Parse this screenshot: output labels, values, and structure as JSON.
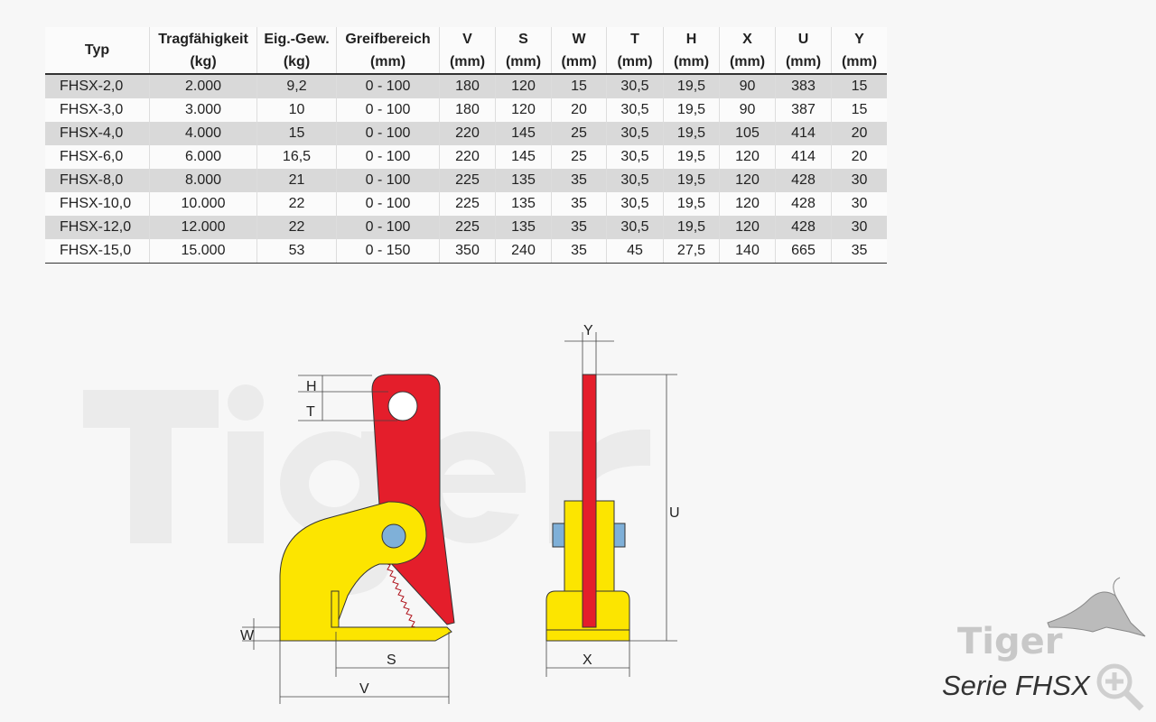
{
  "watermark": "Tiger",
  "table": {
    "headers": [
      {
        "l1": "Typ",
        "l2": ""
      },
      {
        "l1": "Tragfähigkeit",
        "l2": "(kg)"
      },
      {
        "l1": "Eig.-Gew.",
        "l2": "(kg)"
      },
      {
        "l1": "Greifbereich",
        "l2": "(mm)"
      },
      {
        "l1": "V",
        "l2": "(mm)"
      },
      {
        "l1": "S",
        "l2": "(mm)"
      },
      {
        "l1": "W",
        "l2": "(mm)"
      },
      {
        "l1": "T",
        "l2": "(mm)"
      },
      {
        "l1": "H",
        "l2": "(mm)"
      },
      {
        "l1": "X",
        "l2": "(mm)"
      },
      {
        "l1": "U",
        "l2": "(mm)"
      },
      {
        "l1": "Y",
        "l2": "(mm)"
      }
    ],
    "rows": [
      [
        "FHSX-2,0",
        "2.000",
        "9,2",
        "0 - 100",
        "180",
        "120",
        "15",
        "30,5",
        "19,5",
        "90",
        "383",
        "15"
      ],
      [
        "FHSX-3,0",
        "3.000",
        "10",
        "0 - 100",
        "180",
        "120",
        "20",
        "30,5",
        "19,5",
        "90",
        "387",
        "15"
      ],
      [
        "FHSX-4,0",
        "4.000",
        "15",
        "0 - 100",
        "220",
        "145",
        "25",
        "30,5",
        "19,5",
        "105",
        "414",
        "20"
      ],
      [
        "FHSX-6,0",
        "6.000",
        "16,5",
        "0 - 100",
        "220",
        "145",
        "25",
        "30,5",
        "19,5",
        "120",
        "414",
        "20"
      ],
      [
        "FHSX-8,0",
        "8.000",
        "21",
        "0 - 100",
        "225",
        "135",
        "35",
        "30,5",
        "19,5",
        "120",
        "428",
        "30"
      ],
      [
        "FHSX-10,0",
        "10.000",
        "22",
        "0 - 100",
        "225",
        "135",
        "35",
        "30,5",
        "19,5",
        "120",
        "428",
        "30"
      ],
      [
        "FHSX-12,0",
        "12.000",
        "22",
        "0 - 100",
        "225",
        "135",
        "35",
        "30,5",
        "19,5",
        "120",
        "428",
        "30"
      ],
      [
        "FHSX-15,0",
        "15.000",
        "53",
        "0 - 150",
        "350",
        "240",
        "35",
        "45",
        "27,5",
        "140",
        "665",
        "35"
      ]
    ]
  },
  "diagram": {
    "H": "H",
    "T": "T",
    "W": "W",
    "S": "S",
    "V": "V",
    "Y": "Y",
    "U": "U",
    "X": "X",
    "colors": {
      "red": "#e41e2b",
      "yellow": "#fce500",
      "blue": "#7fb0d8"
    }
  },
  "logo": {
    "brand": "Tiger",
    "serie": "Serie FHSX",
    "zoom_icon": "zoom-plus-icon"
  }
}
